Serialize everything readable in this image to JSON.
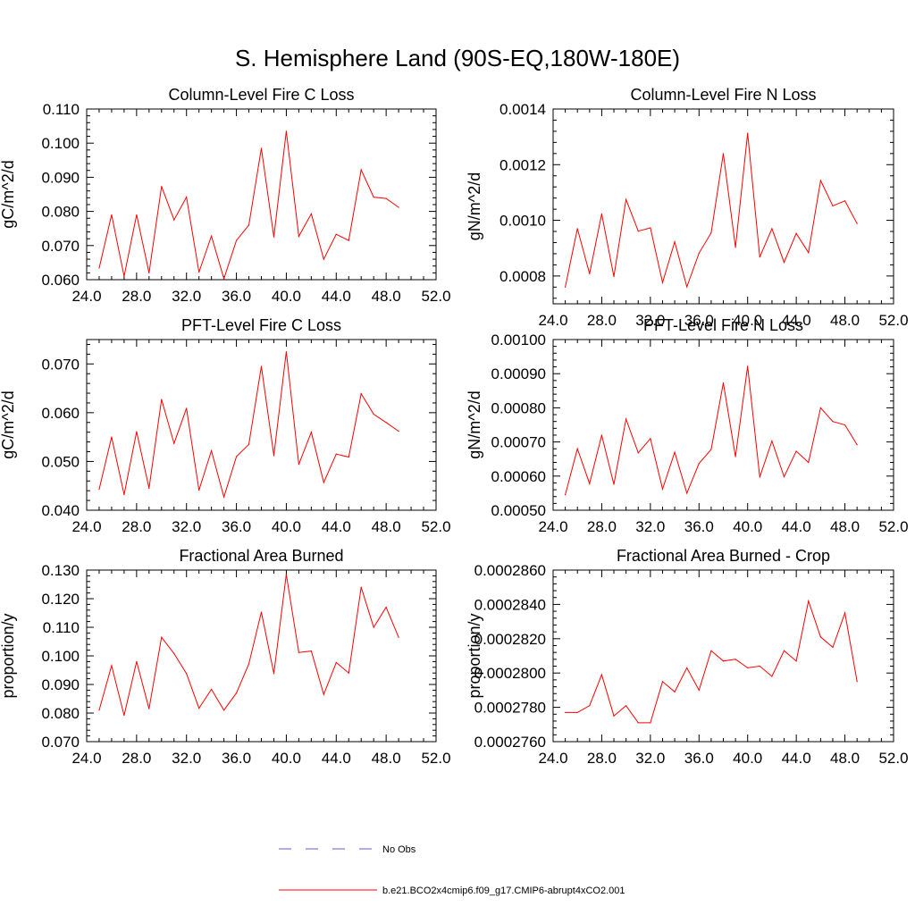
{
  "figure_title": "S. Hemisphere Land (90S-EQ,180W-180E)",
  "legend": {
    "entries": [
      {
        "label": "No Obs",
        "color": "#5b5bd6",
        "style": "dashed"
      },
      {
        "label": "b.e21.BCO2x4cmip6.f09_g17.CMIP6-abrupt4xCO2.001",
        "color": "#ff0000",
        "style": "solid"
      }
    ]
  },
  "colors": {
    "series": "#ff0000",
    "axis": "#000000"
  },
  "chart_data": [
    {
      "type": "line",
      "title": "Column-Level Fire C Loss",
      "ylabel": "gC/m^2/d",
      "xlim": [
        24,
        52
      ],
      "ylim": [
        0.06,
        0.11
      ],
      "xticks": [
        24,
        28,
        32,
        36,
        40,
        44,
        48,
        52
      ],
      "xtick_labels": [
        "24.0",
        "28.0",
        "32.0",
        "36.0",
        "40.0",
        "44.0",
        "48.0",
        "52.0"
      ],
      "yticks": [
        0.06,
        0.07,
        0.08,
        0.09,
        0.1,
        0.11
      ],
      "ytick_labels": [
        "0.060",
        "0.070",
        "0.080",
        "0.090",
        "0.100",
        "0.110"
      ],
      "x": [
        25,
        26,
        27,
        28,
        29,
        30,
        31,
        32,
        33,
        34,
        35,
        36,
        37,
        38,
        39,
        40,
        41,
        42,
        43,
        44,
        45,
        46,
        47,
        48,
        49
      ],
      "series": [
        {
          "name": "b.e21.BCO2x4cmip6.f09_g17.CMIP6-abrupt4xCO2.001",
          "values": [
            0.0634,
            0.079,
            0.061,
            0.079,
            0.062,
            0.0873,
            0.0775,
            0.0842,
            0.0622,
            0.0728,
            0.0603,
            0.0715,
            0.076,
            0.0985,
            0.0725,
            0.1035,
            0.0727,
            0.0793,
            0.066,
            0.0733,
            0.0715,
            0.0922,
            0.0842,
            0.0838,
            0.0812
          ]
        }
      ]
    },
    {
      "type": "line",
      "title": "Column-Level Fire N Loss",
      "ylabel": "gN/m^2/d",
      "xlim": [
        24,
        52
      ],
      "ylim": [
        0.0007,
        0.0014
      ],
      "xticks": [
        24,
        28,
        32,
        36,
        40,
        44,
        48,
        52
      ],
      "xtick_labels": [
        "24.0",
        "28.0",
        "32.0",
        "36.0",
        "40.0",
        "44.0",
        "48.0",
        "52.0"
      ],
      "yticks": [
        0.0008,
        0.001,
        0.0012,
        0.0014
      ],
      "ytick_labels": [
        "0.0008",
        "0.0010",
        "0.0012",
        "0.0014"
      ],
      "x": [
        25,
        26,
        27,
        28,
        29,
        30,
        31,
        32,
        33,
        34,
        35,
        36,
        37,
        38,
        39,
        40,
        41,
        42,
        43,
        44,
        45,
        46,
        47,
        48,
        49
      ],
      "series": [
        {
          "name": "b.e21.BCO2x4cmip6.f09_g17.CMIP6-abrupt4xCO2.001",
          "values": [
            0.00076,
            0.00097,
            0.000808,
            0.001023,
            0.000798,
            0.001075,
            0.000961,
            0.000973,
            0.000776,
            0.000923,
            0.000761,
            0.000882,
            0.000955,
            0.00124,
            0.000903,
            0.001313,
            0.000868,
            0.00097,
            0.000849,
            0.000953,
            0.000884,
            0.001143,
            0.001052,
            0.00107,
            0.000988
          ]
        }
      ]
    },
    {
      "type": "line",
      "title": "PFT-Level Fire C Loss",
      "ylabel": "gC/m^2/d",
      "xlim": [
        24,
        52
      ],
      "ylim": [
        0.04,
        0.075
      ],
      "xticks": [
        24,
        28,
        32,
        36,
        40,
        44,
        48,
        52
      ],
      "xtick_labels": [
        "24.0",
        "28.0",
        "32.0",
        "36.0",
        "40.0",
        "44.0",
        "48.0",
        "52.0"
      ],
      "yticks": [
        0.04,
        0.05,
        0.06,
        0.07
      ],
      "ytick_labels": [
        "0.040",
        "0.050",
        "0.060",
        "0.070"
      ],
      "x": [
        25,
        26,
        27,
        28,
        29,
        30,
        31,
        32,
        33,
        34,
        35,
        36,
        37,
        38,
        39,
        40,
        41,
        42,
        43,
        44,
        45,
        46,
        47,
        48,
        49
      ],
      "series": [
        {
          "name": "b.e21.BCO2x4cmip6.f09_g17.CMIP6-abrupt4xCO2.001",
          "values": [
            0.0443,
            0.055,
            0.0432,
            0.0561,
            0.0445,
            0.0627,
            0.0537,
            0.0609,
            0.0441,
            0.0522,
            0.0427,
            0.051,
            0.0535,
            0.0695,
            0.0512,
            0.0725,
            0.0494,
            0.056,
            0.0457,
            0.0515,
            0.0509,
            0.0639,
            0.0597,
            0.058,
            0.0562
          ]
        }
      ]
    },
    {
      "type": "line",
      "title": "PFT-Level Fire N Loss",
      "ylabel": "gN/m^2/d",
      "xlim": [
        24,
        52
      ],
      "ylim": [
        0.0005,
        0.001
      ],
      "xticks": [
        24,
        28,
        32,
        36,
        40,
        44,
        48,
        52
      ],
      "xtick_labels": [
        "24.0",
        "28.0",
        "32.0",
        "36.0",
        "40.0",
        "44.0",
        "48.0",
        "52.0"
      ],
      "yticks": [
        0.0005,
        0.0006,
        0.0007,
        0.0008,
        0.0009,
        0.001
      ],
      "ytick_labels": [
        "0.00050",
        "0.00060",
        "0.00070",
        "0.00080",
        "0.00090",
        "0.00100"
      ],
      "x": [
        25,
        26,
        27,
        28,
        29,
        30,
        31,
        32,
        33,
        34,
        35,
        36,
        37,
        38,
        39,
        40,
        41,
        42,
        43,
        44,
        45,
        46,
        47,
        48,
        49
      ],
      "series": [
        {
          "name": "b.e21.BCO2x4cmip6.f09_g17.CMIP6-abrupt4xCO2.001",
          "values": [
            0.000545,
            0.00068,
            0.000578,
            0.00072,
            0.000576,
            0.000767,
            0.000668,
            0.00071,
            0.000562,
            0.00067,
            0.00055,
            0.000637,
            0.000678,
            0.000873,
            0.000657,
            0.000922,
            0.000597,
            0.000703,
            0.000598,
            0.000673,
            0.00064,
            0.0008,
            0.00076,
            0.00075,
            0.000692
          ]
        }
      ]
    },
    {
      "type": "line",
      "title": "Fractional Area Burned",
      "ylabel": "proportion/y",
      "xlim": [
        24,
        52
      ],
      "ylim": [
        0.07,
        0.13
      ],
      "xticks": [
        24,
        28,
        32,
        36,
        40,
        44,
        48,
        52
      ],
      "xtick_labels": [
        "24.0",
        "28.0",
        "32.0",
        "36.0",
        "40.0",
        "44.0",
        "48.0",
        "52.0"
      ],
      "yticks": [
        0.07,
        0.08,
        0.09,
        0.1,
        0.11,
        0.12,
        0.13
      ],
      "ytick_labels": [
        "0.070",
        "0.080",
        "0.090",
        "0.100",
        "0.110",
        "0.120",
        "0.130"
      ],
      "x": [
        25,
        26,
        27,
        28,
        29,
        30,
        31,
        32,
        33,
        34,
        35,
        36,
        37,
        38,
        39,
        40,
        41,
        42,
        43,
        44,
        45,
        46,
        47,
        48,
        49
      ],
      "series": [
        {
          "name": "b.e21.BCO2x4cmip6.f09_g17.CMIP6-abrupt4xCO2.001",
          "values": [
            0.081,
            0.0966,
            0.0792,
            0.098,
            0.0815,
            0.1065,
            0.1008,
            0.0938,
            0.0817,
            0.0883,
            0.081,
            0.087,
            0.0972,
            0.1153,
            0.0938,
            0.1285,
            0.1012,
            0.1017,
            0.0865,
            0.0977,
            0.094,
            0.124,
            0.11,
            0.117,
            0.1065
          ]
        }
      ]
    },
    {
      "type": "line",
      "title": "Fractional Area Burned - Crop",
      "ylabel": "proportion/y",
      "xlim": [
        24,
        52
      ],
      "ylim": [
        0.000276,
        0.000286
      ],
      "xticks": [
        24,
        28,
        32,
        36,
        40,
        44,
        48,
        52
      ],
      "xtick_labels": [
        "24.0",
        "28.0",
        "32.0",
        "36.0",
        "40.0",
        "44.0",
        "48.0",
        "52.0"
      ],
      "yticks": [
        0.000276,
        0.000278,
        0.00028,
        0.000282,
        0.000284,
        0.000286
      ],
      "ytick_labels": [
        "0.0002760",
        "0.0002780",
        "0.0002800",
        "0.0002820",
        "0.0002840",
        "0.0002860"
      ],
      "x": [
        25,
        26,
        27,
        28,
        29,
        30,
        31,
        32,
        33,
        34,
        35,
        36,
        37,
        38,
        39,
        40,
        41,
        42,
        43,
        44,
        45,
        46,
        47,
        48,
        49
      ],
      "series": [
        {
          "name": "b.e21.BCO2x4cmip6.f09_g17.CMIP6-abrupt4xCO2.001",
          "values": [
            0.0002777,
            0.0002777,
            0.0002781,
            0.0002799,
            0.0002775,
            0.0002781,
            0.0002771,
            0.0002771,
            0.0002795,
            0.0002789,
            0.0002803,
            0.000279,
            0.0002813,
            0.0002807,
            0.0002808,
            0.0002803,
            0.0002804,
            0.0002798,
            0.0002813,
            0.0002807,
            0.0002842,
            0.0002821,
            0.0002815,
            0.0002835,
            0.0002795
          ]
        }
      ]
    }
  ]
}
